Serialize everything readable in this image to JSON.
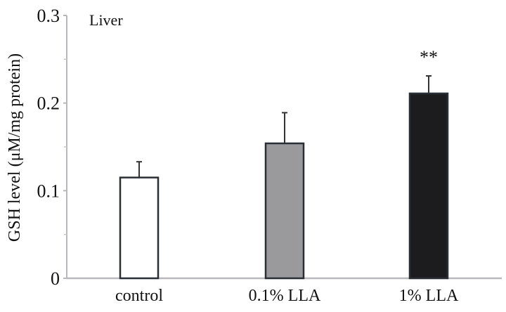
{
  "chart_data": {
    "type": "bar",
    "title": "Liver",
    "xlabel": "",
    "ylabel": "GSH level (μM/mg protein)",
    "ylim": [
      0,
      0.3
    ],
    "yticks": [
      "0",
      "0.1",
      "0.2",
      "0.3"
    ],
    "yticks_values": [
      0,
      0.1,
      0.2,
      0.3
    ],
    "minor_ticks": [
      0.05,
      0.15,
      0.25
    ],
    "categories": [
      "control",
      "0.1% LLA",
      "1% LLA"
    ],
    "values": [
      0.115,
      0.154,
      0.211
    ],
    "errors": [
      0.018,
      0.035,
      0.02
    ],
    "colors": [
      "#ffffff",
      "#9a9a9c",
      "#1c1c1e"
    ],
    "annotations": [
      "",
      "",
      "**"
    ],
    "grid": false
  }
}
